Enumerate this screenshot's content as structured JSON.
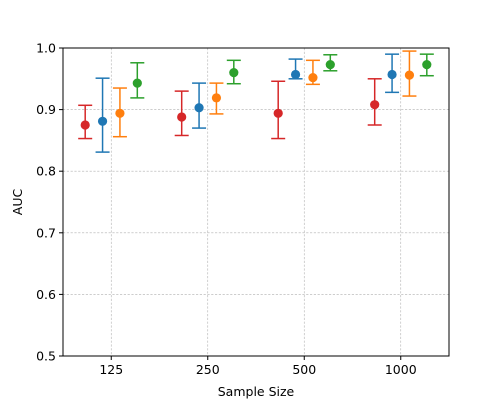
{
  "chart_data": {
    "type": "scatter",
    "title": "",
    "xlabel": "Sample Size",
    "ylabel": "AUC",
    "categories": [
      "125",
      "250",
      "500",
      "1000"
    ],
    "ylim": [
      0.5,
      1.0
    ],
    "yticks": [
      "0.5",
      "0.6",
      "0.7",
      "0.8",
      "0.9",
      "1.0"
    ],
    "grid": true,
    "error_bars": true,
    "series": [
      {
        "color": "#d62728",
        "values": [
          0.875,
          0.888,
          0.894,
          0.908
        ],
        "lower": [
          0.853,
          0.858,
          0.853,
          0.875
        ],
        "upper": [
          0.907,
          0.93,
          0.946,
          0.95
        ]
      },
      {
        "color": "#1f77b4",
        "values": [
          0.881,
          0.903,
          0.957,
          0.957
        ],
        "lower": [
          0.831,
          0.87,
          0.95,
          0.928
        ],
        "upper": [
          0.951,
          0.943,
          0.982,
          0.99
        ]
      },
      {
        "color": "#ff7f0e",
        "values": [
          0.894,
          0.919,
          0.952,
          0.956
        ],
        "lower": [
          0.856,
          0.893,
          0.941,
          0.922
        ],
        "upper": [
          0.935,
          0.943,
          0.98,
          0.995
        ]
      },
      {
        "color": "#2ca02c",
        "values": [
          0.943,
          0.96,
          0.973,
          0.973
        ],
        "lower": [
          0.919,
          0.942,
          0.963,
          0.955
        ],
        "upper": [
          0.976,
          0.98,
          0.989,
          0.99
        ]
      }
    ]
  }
}
